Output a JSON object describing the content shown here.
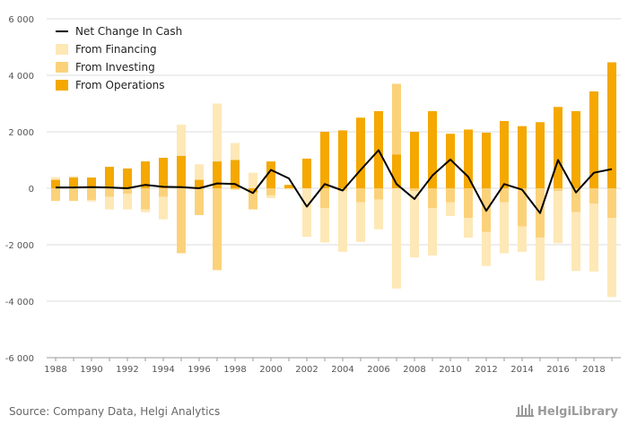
{
  "source": "Source: Company Data, Helgi Analytics",
  "logo": {
    "brand": "HelgiLibrary",
    "icon": "library-columns-icon"
  },
  "colors": {
    "financing": "#fde8b6",
    "investing": "#fbd27a",
    "operations": "#f4a800",
    "net": "#000000",
    "grid": "#dddddd"
  },
  "chart_data": {
    "type": "bar",
    "title": "",
    "xlabel": "",
    "ylabel": "",
    "ylim": [
      -6000,
      6000
    ],
    "y_ticks": [
      -6000,
      -4000,
      -2000,
      0,
      2000,
      4000,
      6000
    ],
    "y_tick_labels": [
      "-6 000",
      "-4 000",
      "-2 000",
      "0",
      "2 000",
      "4 000",
      "6 000"
    ],
    "x_tick_labels": [
      "1988",
      "1990",
      "1992",
      "1994",
      "1996",
      "1998",
      "2000",
      "2002",
      "2004",
      "2006",
      "2008",
      "2010",
      "2012",
      "2014",
      "2016",
      "2018"
    ],
    "grid": true,
    "stacked": true,
    "legend_position": "top-left",
    "legend": [
      "Net Change In Cash",
      "From Financing",
      "From Investing",
      "From Operations"
    ],
    "categories": [
      1988,
      1989,
      1990,
      1991,
      1992,
      1993,
      1994,
      1995,
      1996,
      1997,
      1998,
      1999,
      2000,
      2001,
      2002,
      2003,
      2004,
      2005,
      2006,
      2007,
      2008,
      2009,
      2010,
      2011,
      2012,
      2013,
      2014,
      2015,
      2016,
      2017,
      2018,
      2019
    ],
    "series": [
      {
        "name": "From Operations",
        "kind": "bar",
        "values": [
          300,
          380,
          380,
          760,
          700,
          950,
          1080,
          1150,
          300,
          950,
          1000,
          -150,
          950,
          120,
          1050,
          2000,
          2050,
          2500,
          2730,
          1200,
          2000,
          2730,
          1930,
          2080,
          1970,
          2380,
          2200,
          2340,
          2880,
          2730,
          3430,
          4460
        ]
      },
      {
        "name": "From Investing",
        "kind": "bar",
        "values": [
          -450,
          -450,
          -420,
          -300,
          -200,
          -750,
          -300,
          -2300,
          -950,
          -2900,
          -50,
          -600,
          -250,
          0,
          0,
          -700,
          -100,
          -500,
          -400,
          2500,
          -100,
          -700,
          -500,
          -1050,
          -1550,
          -500,
          -1350,
          -1750,
          -100,
          -850,
          -550,
          -1050
        ]
      },
      {
        "name": "From Financing",
        "kind": "bar",
        "values": [
          100,
          50,
          -50,
          -450,
          -550,
          -100,
          -800,
          1100,
          550,
          2050,
          600,
          550,
          -100,
          -50,
          -1720,
          -1220,
          -2150,
          -1400,
          -1050,
          -3550,
          -2350,
          -1680,
          -480,
          -700,
          -1200,
          -1800,
          -900,
          -1520,
          -1850,
          -2080,
          -2400,
          -2800
        ]
      },
      {
        "name": "Net Change In Cash",
        "kind": "line",
        "values": [
          30,
          30,
          40,
          30,
          0,
          120,
          50,
          40,
          0,
          170,
          150,
          -170,
          650,
          350,
          -650,
          150,
          -80,
          650,
          1350,
          150,
          -380,
          450,
          1020,
          400,
          -800,
          150,
          -50,
          -880,
          1000,
          -150,
          550,
          680
        ]
      }
    ]
  }
}
